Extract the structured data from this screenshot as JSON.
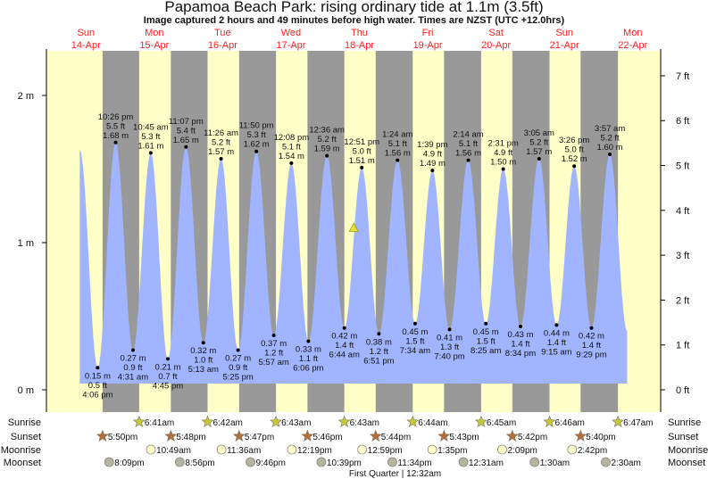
{
  "header": {
    "title": "Papamoa Beach Park: rising  ordinary tide at 1.1m (3.5ft)",
    "subtitle": "Image captured 2 hours and 49 minutes before high water. Times are NZST (UTC +12.0hrs)"
  },
  "colors": {
    "day": "#ffffc8",
    "night": "#999999",
    "water": "#a0b4ff",
    "day_label": "#ff2020",
    "sunrise_icon": "#c8c832",
    "sunset_icon": "#b46e3c",
    "moonrise_icon": "#ffffc8",
    "moonset_icon": "#b4b4a0"
  },
  "chart_data": {
    "type": "area",
    "title": "Papamoa Beach Park: rising  ordinary tide at 1.1m (3.5ft)",
    "days": [
      {
        "dow": "Sun",
        "date": "14-Apr"
      },
      {
        "dow": "Mon",
        "date": "15-Apr"
      },
      {
        "dow": "Tue",
        "date": "16-Apr"
      },
      {
        "dow": "Wed",
        "date": "17-Apr"
      },
      {
        "dow": "Thu",
        "date": "18-Apr"
      },
      {
        "dow": "Fri",
        "date": "19-Apr"
      },
      {
        "dow": "Sat",
        "date": "20-Apr"
      },
      {
        "dow": "Sun",
        "date": "21-Apr"
      },
      {
        "dow": "Mon",
        "date": "22-Apr"
      }
    ],
    "y_left": {
      "unit": "m",
      "ticks": [
        "0 m",
        "1 m",
        "2 m"
      ],
      "range": [
        -0.15,
        2.3
      ]
    },
    "y_right": {
      "unit": "ft",
      "ticks": [
        "0 ft",
        "1 ft",
        "2 ft",
        "3 ft",
        "4 ft",
        "5 ft",
        "6 ft",
        "7 ft"
      ]
    },
    "curve_start": {
      "day": 0,
      "time": "9:50 am",
      "m": 1.63
    },
    "curve_end": {
      "day": 8,
      "time": "10:00 am",
      "m": 0.4
    },
    "current": {
      "day": 4,
      "time": "10:02 am",
      "m": 1.1
    },
    "extremes": [
      {
        "type": "low",
        "day": 0,
        "time": "4:06 pm",
        "m": "0.15 m",
        "ft": "0.5 ft",
        "value": 0.15
      },
      {
        "type": "high",
        "day": 0,
        "time": "10:26 pm",
        "m": "1.68 m",
        "ft": "5.5 ft",
        "value": 1.68
      },
      {
        "type": "low",
        "day": 1,
        "time": "4:31 am",
        "m": "0.27 m",
        "ft": "0.9 ft",
        "value": 0.27
      },
      {
        "type": "high",
        "day": 1,
        "time": "10:45 am",
        "m": "1.61 m",
        "ft": "5.3 ft",
        "value": 1.61
      },
      {
        "type": "low",
        "day": 1,
        "time": "4:45 pm",
        "m": "0.21 m",
        "ft": "0.7 ft",
        "value": 0.21
      },
      {
        "type": "high",
        "day": 1,
        "time": "11:07 pm",
        "m": "1.65 m",
        "ft": "5.4 ft",
        "value": 1.65
      },
      {
        "type": "low",
        "day": 2,
        "time": "5:13 am",
        "m": "0.32 m",
        "ft": "1.0 ft",
        "value": 0.32
      },
      {
        "type": "high",
        "day": 2,
        "time": "11:26 am",
        "m": "1.57 m",
        "ft": "5.2 ft",
        "value": 1.57
      },
      {
        "type": "low",
        "day": 2,
        "time": "5:25 pm",
        "m": "0.27 m",
        "ft": "0.9 ft",
        "value": 0.27
      },
      {
        "type": "high",
        "day": 2,
        "time": "11:50 pm",
        "m": "1.62 m",
        "ft": "5.3 ft",
        "value": 1.62
      },
      {
        "type": "low",
        "day": 3,
        "time": "5:57 am",
        "m": "0.37 m",
        "ft": "1.2 ft",
        "value": 0.37
      },
      {
        "type": "high",
        "day": 3,
        "time": "12:08 pm",
        "m": "1.54 m",
        "ft": "5.1 ft",
        "value": 1.54
      },
      {
        "type": "low",
        "day": 3,
        "time": "6:06 pm",
        "m": "0.33 m",
        "ft": "1.1 ft",
        "value": 0.33
      },
      {
        "type": "high",
        "day": 4,
        "time": "12:36 am",
        "m": "1.59 m",
        "ft": "5.2 ft",
        "value": 1.59
      },
      {
        "type": "low",
        "day": 4,
        "time": "6:44 am",
        "m": "0.42 m",
        "ft": "1.4 ft",
        "value": 0.42
      },
      {
        "type": "high",
        "day": 4,
        "time": "12:51 pm",
        "m": "1.51 m",
        "ft": "5.0 ft",
        "value": 1.51
      },
      {
        "type": "low",
        "day": 4,
        "time": "6:51 pm",
        "m": "0.38 m",
        "ft": "1.2 ft",
        "value": 0.38
      },
      {
        "type": "high",
        "day": 5,
        "time": "1:24 am",
        "m": "1.56 m",
        "ft": "5.1 ft",
        "value": 1.56
      },
      {
        "type": "low",
        "day": 5,
        "time": "7:34 am",
        "m": "0.45 m",
        "ft": "1.5 ft",
        "value": 0.45
      },
      {
        "type": "high",
        "day": 5,
        "time": "1:39 pm",
        "m": "1.49 m",
        "ft": "4.9 ft",
        "value": 1.49
      },
      {
        "type": "low",
        "day": 5,
        "time": "7:40 pm",
        "m": "0.41 m",
        "ft": "1.3 ft",
        "value": 0.41
      },
      {
        "type": "high",
        "day": 6,
        "time": "2:14 am",
        "m": "1.56 m",
        "ft": "5.1 ft",
        "value": 1.56
      },
      {
        "type": "low",
        "day": 6,
        "time": "8:25 am",
        "m": "0.45 m",
        "ft": "1.5 ft",
        "value": 0.45
      },
      {
        "type": "high",
        "day": 6,
        "time": "2:31 pm",
        "m": "1.50 m",
        "ft": "4.9 ft",
        "value": 1.5
      },
      {
        "type": "low",
        "day": 6,
        "time": "8:34 pm",
        "m": "0.43 m",
        "ft": "1.4 ft",
        "value": 0.43
      },
      {
        "type": "high",
        "day": 7,
        "time": "3:05 am",
        "m": "1.57 m",
        "ft": "5.2 ft",
        "value": 1.57
      },
      {
        "type": "low",
        "day": 7,
        "time": "9:15 am",
        "m": "0.44 m",
        "ft": "1.4 ft",
        "value": 0.44
      },
      {
        "type": "high",
        "day": 7,
        "time": "3:26 pm",
        "m": "1.52 m",
        "ft": "5.0 ft",
        "value": 1.52
      },
      {
        "type": "low",
        "day": 7,
        "time": "9:29 pm",
        "m": "0.42 m",
        "ft": "1.4 ft",
        "value": 0.42
      },
      {
        "type": "high",
        "day": 8,
        "time": "3:57 am",
        "m": "1.60 m",
        "ft": "5.2 ft",
        "value": 1.6
      }
    ]
  },
  "astro": {
    "row_labels": {
      "sunrise": "Sunrise",
      "sunset": "Sunset",
      "moonrise": "Moonrise",
      "moonset": "Moonset"
    },
    "sunrise": [
      {
        "day": 1,
        "time": "6:41am"
      },
      {
        "day": 2,
        "time": "6:42am"
      },
      {
        "day": 3,
        "time": "6:43am"
      },
      {
        "day": 4,
        "time": "6:43am"
      },
      {
        "day": 5,
        "time": "6:44am"
      },
      {
        "day": 6,
        "time": "6:45am"
      },
      {
        "day": 7,
        "time": "6:46am"
      },
      {
        "day": 8,
        "time": "6:47am"
      }
    ],
    "sunset": [
      {
        "day": 0,
        "time": "5:50pm"
      },
      {
        "day": 1,
        "time": "5:48pm"
      },
      {
        "day": 2,
        "time": "5:47pm"
      },
      {
        "day": 3,
        "time": "5:46pm"
      },
      {
        "day": 4,
        "time": "5:44pm"
      },
      {
        "day": 5,
        "time": "5:43pm"
      },
      {
        "day": 6,
        "time": "5:42pm"
      },
      {
        "day": 7,
        "time": "5:40pm"
      }
    ],
    "moonrise": [
      {
        "day": 1,
        "time": "10:49am"
      },
      {
        "day": 2,
        "time": "11:36am"
      },
      {
        "day": 3,
        "time": "12:19pm"
      },
      {
        "day": 4,
        "time": "12:59pm"
      },
      {
        "day": 5,
        "time": "1:35pm"
      },
      {
        "day": 6,
        "time": "2:09pm"
      },
      {
        "day": 7,
        "time": "2:42pm"
      }
    ],
    "moonset": [
      {
        "day": 0,
        "time": "8:09pm"
      },
      {
        "day": 1,
        "time": "8:56pm"
      },
      {
        "day": 2,
        "time": "9:46pm"
      },
      {
        "day": 3,
        "time": "10:39pm"
      },
      {
        "day": 4,
        "time": "11:34pm"
      },
      {
        "day": 6,
        "time": "12:31am"
      },
      {
        "day": 7,
        "time": "1:30am"
      },
      {
        "day": 8,
        "time": "2:30am"
      }
    ],
    "moon_phase": {
      "day": 5,
      "time": "12:32am",
      "label": "First Quarter | 12:32am"
    }
  }
}
